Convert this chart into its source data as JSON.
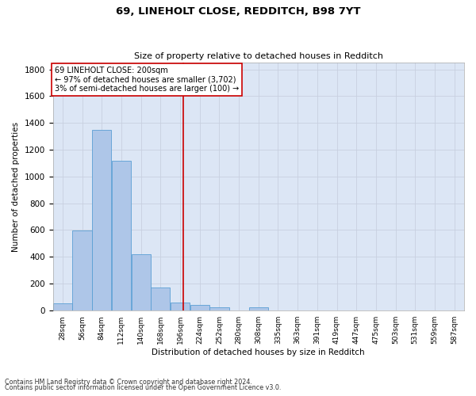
{
  "title": "69, LINEHOLT CLOSE, REDDITCH, B98 7YT",
  "subtitle": "Size of property relative to detached houses in Redditch",
  "xlabel": "Distribution of detached houses by size in Redditch",
  "ylabel": "Number of detached properties",
  "bin_labels": [
    "28sqm",
    "56sqm",
    "84sqm",
    "112sqm",
    "140sqm",
    "168sqm",
    "196sqm",
    "224sqm",
    "252sqm",
    "280sqm",
    "308sqm",
    "335sqm",
    "363sqm",
    "391sqm",
    "419sqm",
    "447sqm",
    "475sqm",
    "503sqm",
    "531sqm",
    "559sqm",
    "587sqm"
  ],
  "bin_edges": [
    14,
    42,
    70,
    98,
    126,
    154,
    182,
    210,
    238,
    266,
    294,
    322,
    350,
    378,
    406,
    434,
    462,
    490,
    518,
    546,
    574,
    602
  ],
  "bar_heights": [
    50,
    595,
    1345,
    1115,
    420,
    170,
    60,
    40,
    20,
    0,
    20,
    0,
    0,
    0,
    0,
    0,
    0,
    0,
    0,
    0,
    0
  ],
  "bar_color": "#aec6e8",
  "bar_edge_color": "#5a9fd4",
  "property_size": 200,
  "vline_color": "#cc0000",
  "annotation_line1": "69 LINEHOLT CLOSE: 200sqm",
  "annotation_line2": "← 97% of detached houses are smaller (3,702)",
  "annotation_line3": "3% of semi-detached houses are larger (100) →",
  "annotation_box_color": "#ffffff",
  "annotation_box_edge_color": "#cc0000",
  "ylim": [
    0,
    1850
  ],
  "yticks": [
    0,
    200,
    400,
    600,
    800,
    1000,
    1200,
    1400,
    1600,
    1800
  ],
  "grid_color": "#c8d0e0",
  "bg_color": "#dce6f5",
  "footer_line1": "Contains HM Land Registry data © Crown copyright and database right 2024.",
  "footer_line2": "Contains public sector information licensed under the Open Government Licence v3.0."
}
